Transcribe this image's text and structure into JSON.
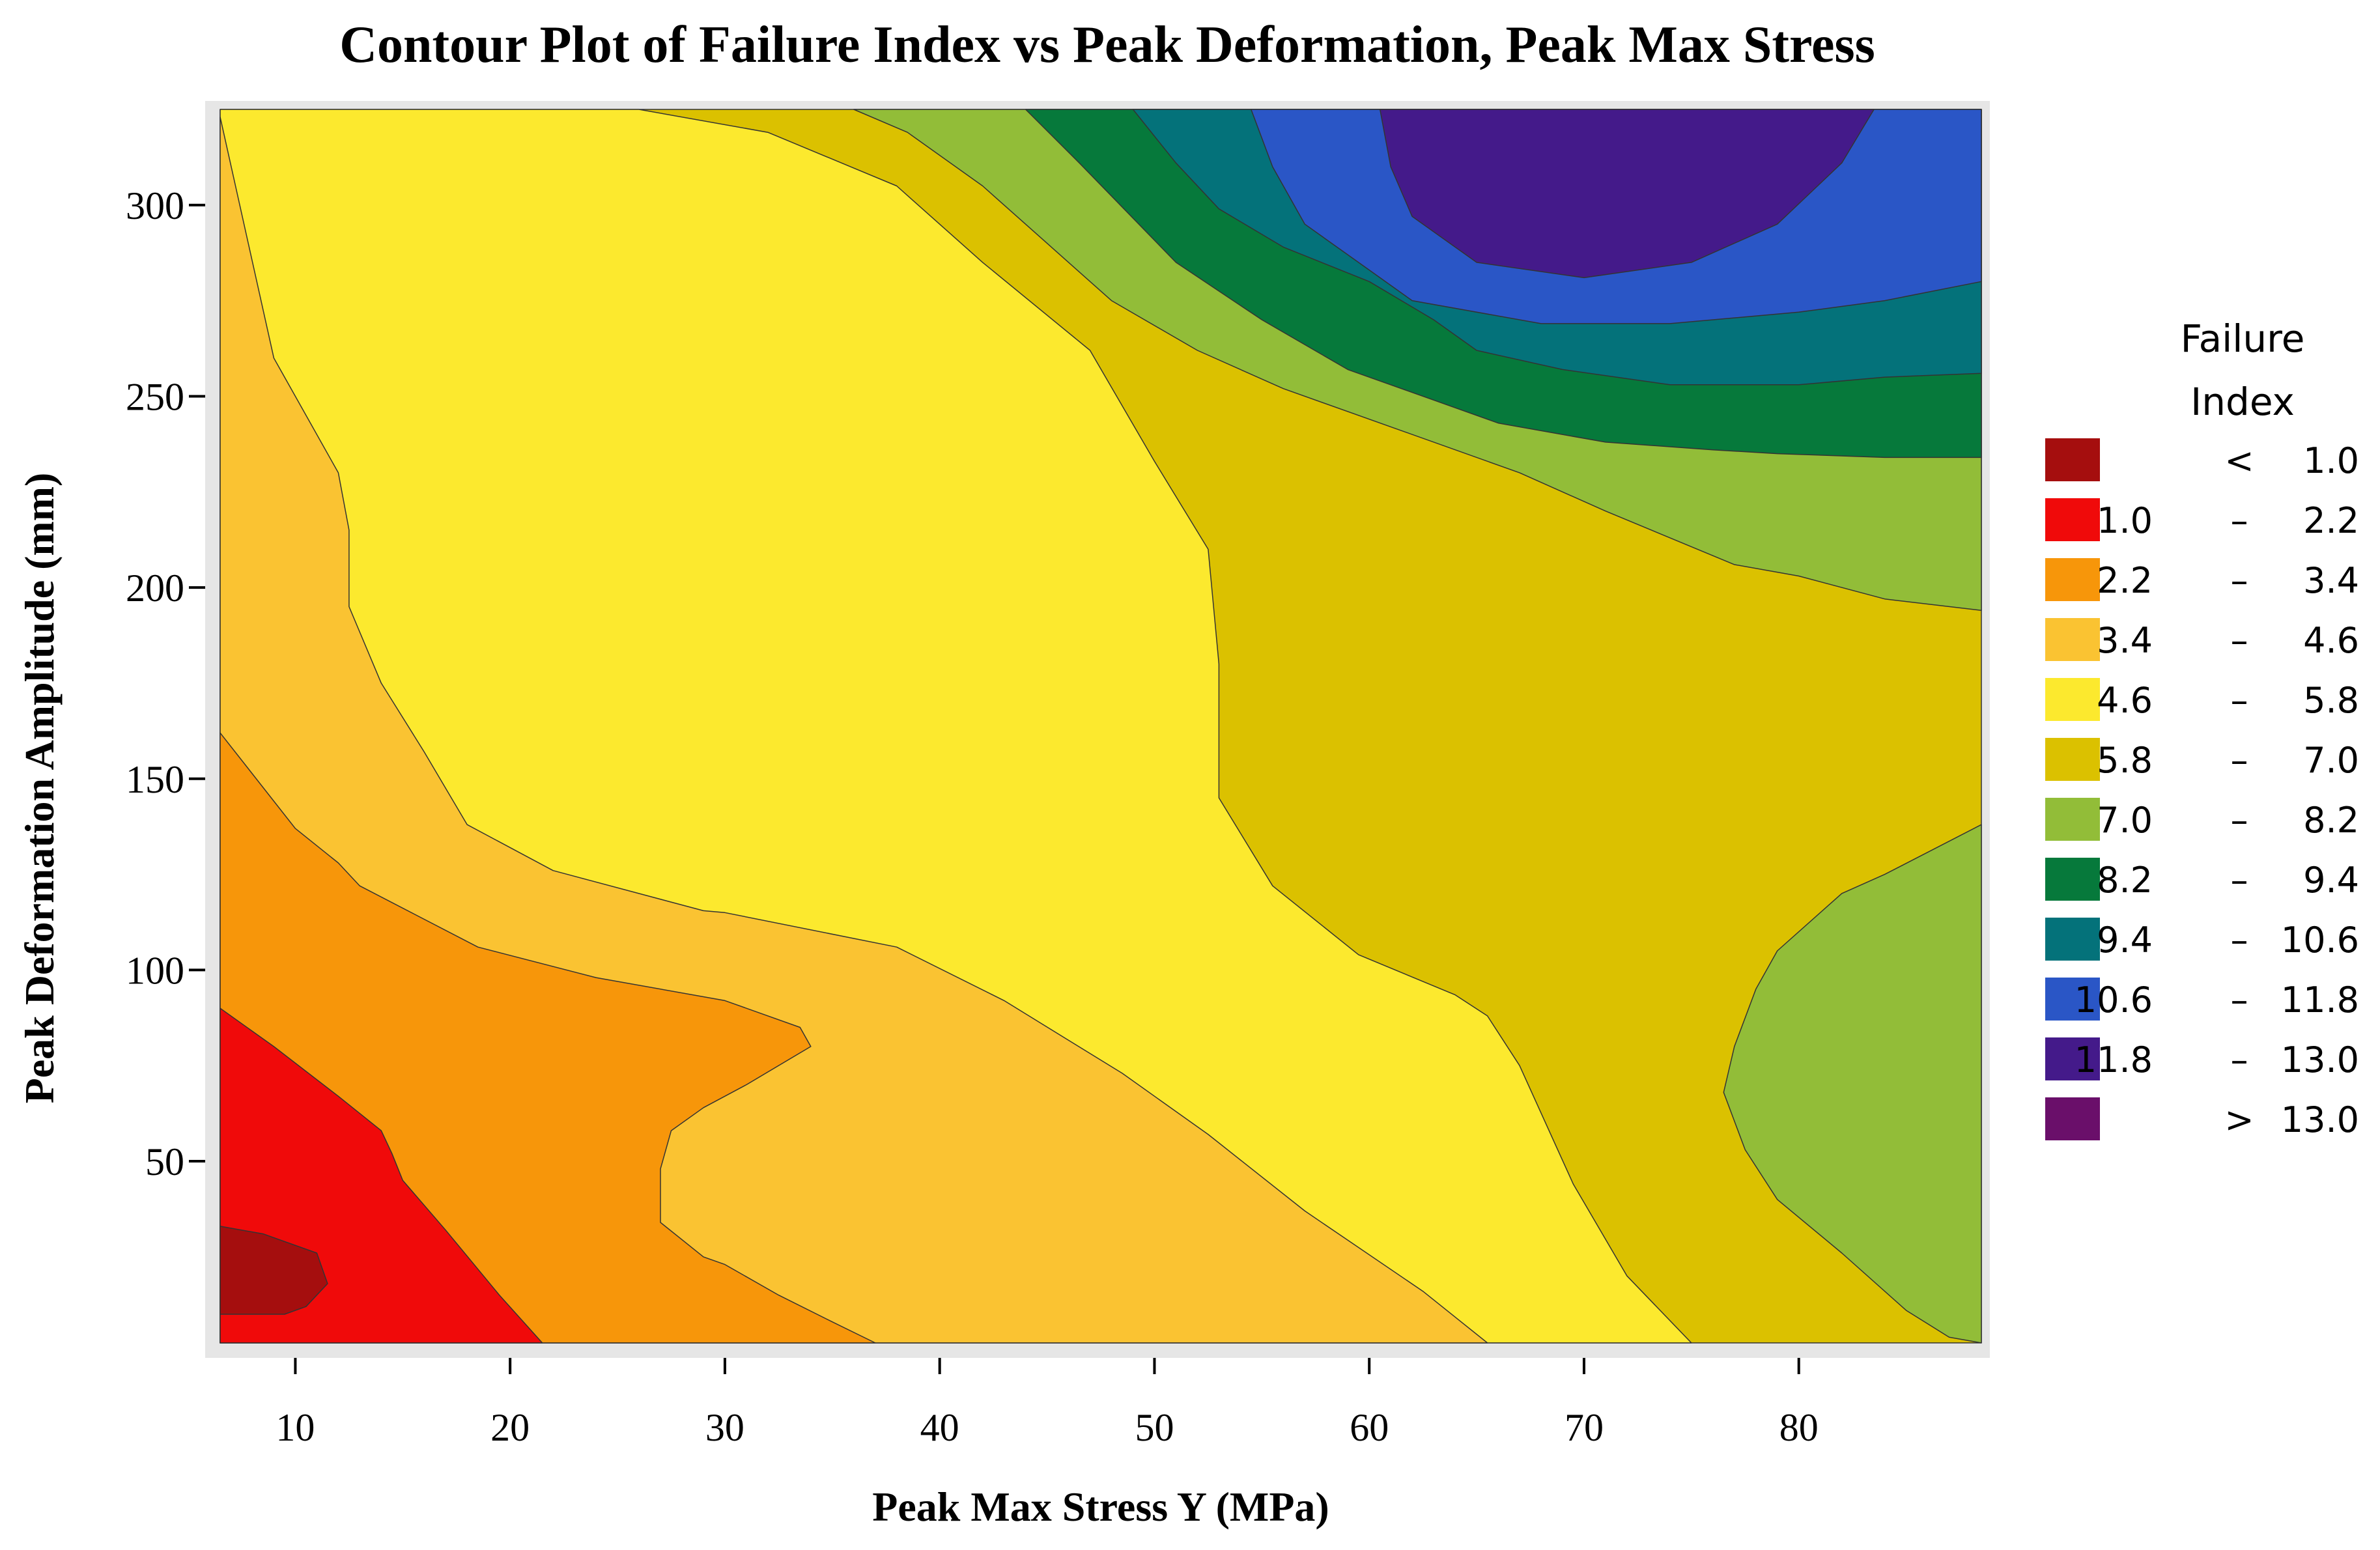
{
  "chart_data": {
    "type": "contour",
    "title": "Contour Plot of Failure Index vs Peak Deformation, Peak Max Stress",
    "xlabel": "Peak Max Stress Y (MPa)",
    "ylabel": "Peak Deformation Amplitude (mm)",
    "xlim": [
      6.5,
      88.5
    ],
    "ylim": [
      2.5,
      325
    ],
    "x_ticks": [
      10,
      20,
      30,
      40,
      50,
      60,
      70,
      80
    ],
    "y_ticks": [
      50,
      100,
      150,
      200,
      250,
      300
    ],
    "legend": {
      "title": [
        "Failure",
        "Index"
      ],
      "placement": "right",
      "levels": [
        {
          "low": "",
          "sep": "<",
          "high": "1.0",
          "color": "#A50E0E"
        },
        {
          "low": "1.0",
          "sep": "–",
          "high": "2.2",
          "color": "#F00A0A"
        },
        {
          "low": "2.2",
          "sep": "–",
          "high": "3.4",
          "color": "#F7960A"
        },
        {
          "low": "3.4",
          "sep": "–",
          "high": "4.6",
          "color": "#FAC332"
        },
        {
          "low": "4.6",
          "sep": "–",
          "high": "5.8",
          "color": "#FCE92E"
        },
        {
          "low": "5.8",
          "sep": "–",
          "high": "7.0",
          "color": "#DBC100"
        },
        {
          "low": "7.0",
          "sep": "–",
          "high": "8.2",
          "color": "#92BD38"
        },
        {
          "low": "8.2",
          "sep": "–",
          "high": "9.4",
          "color": "#06793B"
        },
        {
          "low": "9.4",
          "sep": "–",
          "high": "10.6",
          "color": "#04727A"
        },
        {
          "low": "10.6",
          "sep": "–",
          "high": "11.8",
          "color": "#2A56C6"
        },
        {
          "low": "11.8",
          "sep": "–",
          "high": "13.0",
          "color": "#441A8A"
        },
        {
          "low": "",
          "sep": ">",
          "high": "13.0",
          "color": "#6A0F6A"
        }
      ]
    },
    "regions": [
      {
        "color": "#DBC100",
        "points": [
          [
            6.5,
            2.5
          ],
          [
            88.5,
            2.5
          ],
          [
            88.5,
            325
          ],
          [
            6.5,
            325
          ]
        ]
      },
      {
        "color": "#FCE92E",
        "points": [
          [
            6.5,
            2.5
          ],
          [
            6.5,
            325
          ],
          [
            26,
            325
          ],
          [
            32,
            319
          ],
          [
            38,
            305
          ],
          [
            42,
            285
          ],
          [
            47,
            262
          ],
          [
            50,
            233
          ],
          [
            52.5,
            210
          ],
          [
            53,
            180
          ],
          [
            53,
            145
          ],
          [
            55.5,
            122
          ],
          [
            59.5,
            104
          ],
          [
            64,
            93.5
          ],
          [
            65.5,
            88
          ],
          [
            67,
            75
          ],
          [
            69.5,
            44
          ],
          [
            72,
            20
          ],
          [
            75,
            2.5
          ]
        ]
      },
      {
        "color": "#FAC332",
        "points": [
          [
            6.5,
            2.5
          ],
          [
            65.5,
            2.5
          ],
          [
            62.5,
            16
          ],
          [
            57,
            37
          ],
          [
            52.5,
            57
          ],
          [
            48.5,
            73
          ],
          [
            43,
            92
          ],
          [
            38,
            106
          ],
          [
            30,
            115
          ],
          [
            29,
            115.5
          ],
          [
            22,
            126
          ],
          [
            18,
            138
          ],
          [
            16,
            157
          ],
          [
            14,
            175
          ],
          [
            12.5,
            195
          ],
          [
            12.5,
            215
          ],
          [
            12,
            230
          ],
          [
            9,
            260
          ],
          [
            6.5,
            323
          ]
        ]
      },
      {
        "color": "#F7960A",
        "points": [
          [
            6.5,
            2.5
          ],
          [
            37,
            2.5
          ],
          [
            35,
            8
          ],
          [
            32.5,
            15
          ],
          [
            30,
            23
          ],
          [
            29,
            25
          ],
          [
            27,
            34
          ],
          [
            27,
            48
          ],
          [
            27.5,
            58
          ],
          [
            29,
            64
          ],
          [
            31,
            70
          ],
          [
            34,
            80
          ],
          [
            33.5,
            85
          ],
          [
            30,
            92
          ],
          [
            24,
            98
          ],
          [
            18.5,
            106
          ],
          [
            13,
            122
          ],
          [
            12,
            128
          ],
          [
            10,
            137
          ],
          [
            6.5,
            162
          ]
        ]
      },
      {
        "color": "#F00A0A",
        "points": [
          [
            6.5,
            2.5
          ],
          [
            21.5,
            2.5
          ],
          [
            19.5,
            15
          ],
          [
            17,
            32
          ],
          [
            15,
            45
          ],
          [
            14.5,
            52
          ],
          [
            14,
            58
          ],
          [
            12,
            67
          ],
          [
            9,
            80
          ],
          [
            6.5,
            90
          ]
        ]
      },
      {
        "color": "#A50E0E",
        "points": [
          [
            6.5,
            10
          ],
          [
            6.5,
            33
          ],
          [
            8.5,
            31
          ],
          [
            11,
            26
          ],
          [
            11.5,
            18
          ],
          [
            10.5,
            12
          ],
          [
            9.5,
            10
          ]
        ]
      },
      {
        "color": "#92BD38",
        "points": [
          [
            88.5,
            2.5
          ],
          [
            88.5,
            138
          ],
          [
            84,
            125
          ],
          [
            82,
            120
          ],
          [
            79,
            105
          ],
          [
            78,
            95
          ],
          [
            77,
            80
          ],
          [
            76.5,
            68
          ],
          [
            77.5,
            53
          ],
          [
            79,
            40
          ],
          [
            82,
            26
          ],
          [
            85,
            11
          ],
          [
            87,
            4
          ]
        ]
      },
      {
        "color": "#92BD38",
        "points": [
          [
            36,
            325
          ],
          [
            88.5,
            325
          ],
          [
            88.5,
            194
          ],
          [
            84,
            197
          ],
          [
            80,
            203
          ],
          [
            77,
            206
          ],
          [
            71,
            220
          ],
          [
            67,
            230
          ],
          [
            61,
            242
          ],
          [
            56,
            252
          ],
          [
            52,
            262
          ],
          [
            48,
            275
          ],
          [
            45,
            290
          ],
          [
            42,
            305
          ],
          [
            38.5,
            319
          ]
        ]
      },
      {
        "color": "#06793B",
        "points": [
          [
            44,
            325
          ],
          [
            88.5,
            325
          ],
          [
            88.5,
            234
          ],
          [
            84,
            234
          ],
          [
            79,
            235
          ],
          [
            76,
            236
          ],
          [
            71,
            238
          ],
          [
            66,
            243
          ],
          [
            63,
            249
          ],
          [
            59,
            257
          ],
          [
            55,
            270
          ],
          [
            51,
            285
          ],
          [
            46.5,
            311
          ]
        ]
      },
      {
        "color": "#04727A",
        "points": [
          [
            49,
            325
          ],
          [
            88.5,
            325
          ],
          [
            88.5,
            256
          ],
          [
            84,
            255
          ],
          [
            80,
            253
          ],
          [
            74,
            253
          ],
          [
            69,
            257
          ],
          [
            65,
            262
          ],
          [
            63,
            270
          ],
          [
            60,
            280
          ],
          [
            56,
            289
          ],
          [
            53,
            299
          ],
          [
            51,
            311
          ]
        ]
      },
      {
        "color": "#2A56C6",
        "points": [
          [
            54.5,
            325
          ],
          [
            88.5,
            325
          ],
          [
            88.5,
            280
          ],
          [
            84,
            275
          ],
          [
            80,
            272
          ],
          [
            74,
            269
          ],
          [
            68,
            269
          ],
          [
            62,
            275
          ],
          [
            59.5,
            285
          ],
          [
            57,
            295
          ],
          [
            55.5,
            310
          ]
        ]
      },
      {
        "color": "#441A8A",
        "points": [
          [
            60.5,
            325
          ],
          [
            83.5,
            325
          ],
          [
            82,
            311
          ],
          [
            79,
            295
          ],
          [
            75,
            285
          ],
          [
            70,
            281
          ],
          [
            65,
            285
          ],
          [
            62,
            297
          ],
          [
            61,
            310
          ]
        ]
      }
    ]
  }
}
